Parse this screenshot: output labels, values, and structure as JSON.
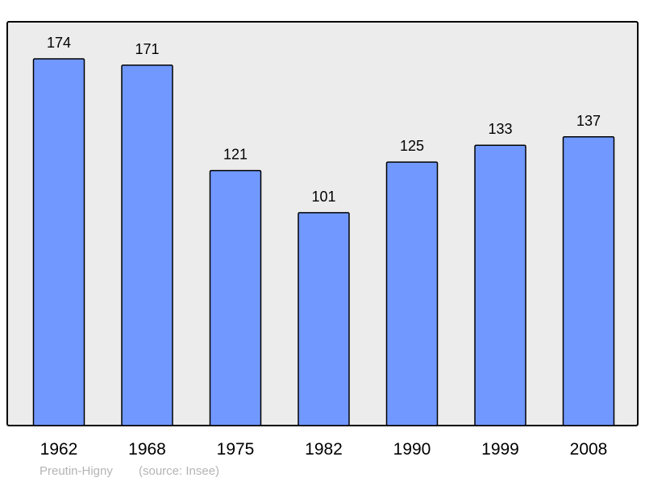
{
  "chart_data": {
    "type": "bar",
    "categories": [
      "1962",
      "1968",
      "1975",
      "1982",
      "1990",
      "1999",
      "2008"
    ],
    "values": [
      174,
      171,
      121,
      101,
      125,
      133,
      137
    ],
    "title": "",
    "xlabel": "",
    "ylabel": "",
    "ylim": [
      0,
      174
    ],
    "grid": false,
    "data_labels": true,
    "colors": {
      "bar": "#7098ff",
      "plot_background": "#ececec",
      "frame": "#000000"
    }
  },
  "caption": {
    "place": "Preutin-Higny",
    "source": "(source: Insee)"
  }
}
